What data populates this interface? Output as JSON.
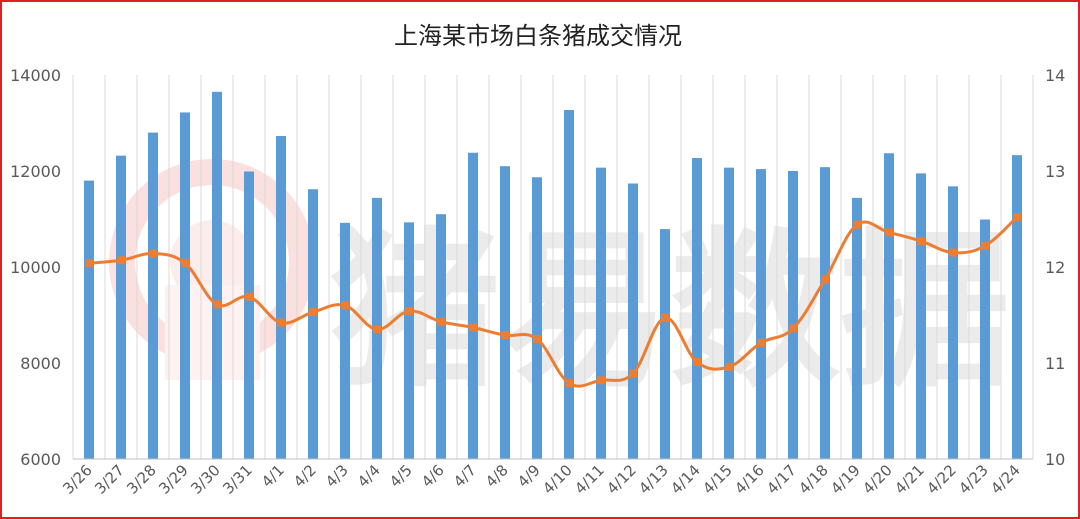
{
  "chart_data": {
    "type": "bar+line",
    "title": "上海某市场白条猪成交情况",
    "categories": [
      "3/26",
      "3/27",
      "3/28",
      "3/29",
      "3/30",
      "3/31",
      "4/1",
      "4/2",
      "4/3",
      "4/4",
      "4/5",
      "4/6",
      "4/7",
      "4/8",
      "4/9",
      "4/10",
      "4/11",
      "4/12",
      "4/13",
      "4/14",
      "4/15",
      "4/16",
      "4/17",
      "4/18",
      "4/19",
      "4/20",
      "4/21",
      "4/22",
      "4/23",
      "4/24"
    ],
    "series": [
      {
        "type": "bar",
        "axis": "left",
        "color": "#5b9bd5",
        "values": [
          11800,
          12320,
          12800,
          13220,
          13650,
          11990,
          12730,
          11620,
          10920,
          11440,
          10930,
          11100,
          12380,
          12100,
          11870,
          13270,
          12070,
          11740,
          10790,
          12270,
          12070,
          12040,
          12000,
          12080,
          11440,
          12370,
          11950,
          11680,
          10990,
          12330
        ]
      },
      {
        "type": "line",
        "axis": "right",
        "color": "#ed7d31",
        "values": [
          12.04,
          12.07,
          12.14,
          12.04,
          11.61,
          11.69,
          11.42,
          11.53,
          11.6,
          11.35,
          11.54,
          11.43,
          11.37,
          11.29,
          11.25,
          10.79,
          10.82,
          10.89,
          11.47,
          11.01,
          10.96,
          11.21,
          11.36,
          11.87,
          12.44,
          12.36,
          12.27,
          12.15,
          12.22,
          12.52
        ]
      }
    ],
    "y_left": {
      "min": 6000,
      "max": 14000,
      "ticks": [
        6000,
        8000,
        10000,
        12000,
        14000
      ]
    },
    "y_right": {
      "min": 10,
      "max": 14,
      "ticks": [
        10,
        11,
        12,
        13,
        14
      ]
    },
    "grid": "vertical",
    "legend": "none"
  },
  "watermark": {
    "text": "猪易数据"
  }
}
